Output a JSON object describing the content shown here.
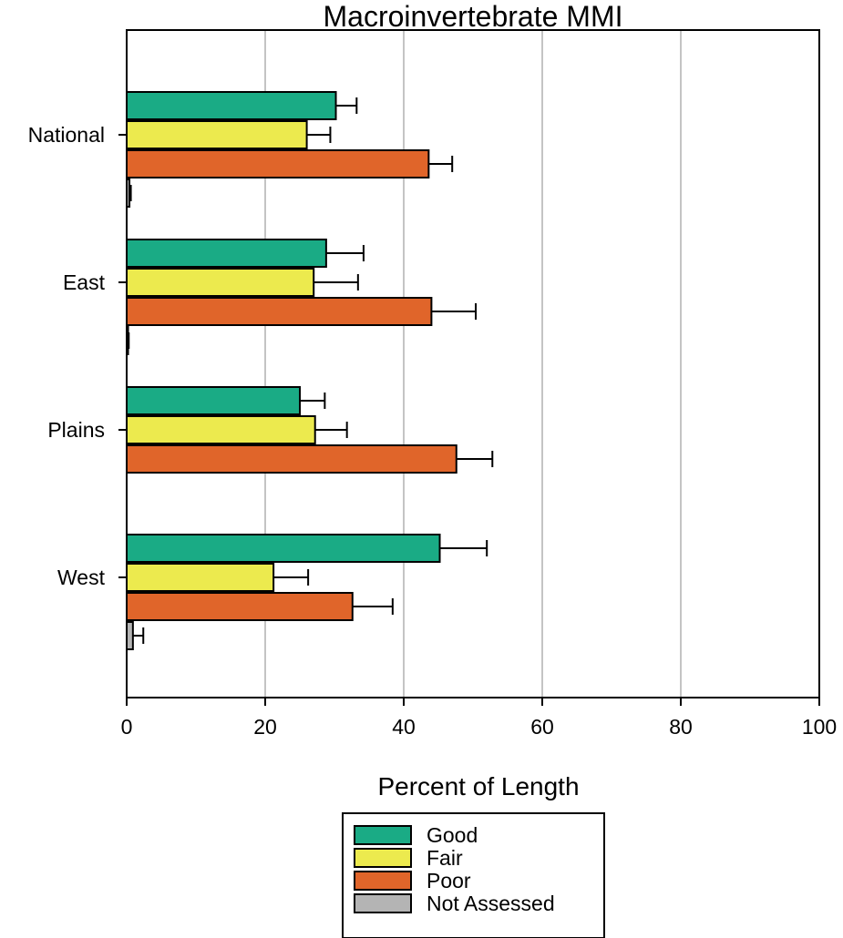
{
  "chart_data": {
    "type": "bar",
    "orientation": "horizontal",
    "title": "Macroinvertebrate MMI",
    "xlabel": "Percent of Length",
    "ylabel": "",
    "xlim": [
      0,
      100
    ],
    "xticks": [
      0,
      20,
      40,
      60,
      80,
      100
    ],
    "grid": true,
    "legend_position": "bottom-center",
    "categories": [
      "National",
      "East",
      "Plains",
      "West"
    ],
    "series": [
      {
        "name": "Good",
        "color": "#1aab85",
        "values": [
          30.2,
          28.8,
          25.0,
          45.2
        ],
        "error_upper": [
          33.2,
          34.2,
          28.6,
          52.0
        ]
      },
      {
        "name": "Fair",
        "color": "#ecea4e",
        "values": [
          26.0,
          27.0,
          27.2,
          21.2
        ],
        "error_upper": [
          29.4,
          33.4,
          31.8,
          26.2
        ]
      },
      {
        "name": "Poor",
        "color": "#e0652a",
        "values": [
          43.6,
          44.0,
          47.6,
          32.6
        ],
        "error_upper": [
          47.0,
          50.4,
          52.8,
          38.4
        ]
      },
      {
        "name": "Not Assessed",
        "color": "#b4b4b4",
        "values": [
          0.4,
          0.2,
          0.0,
          0.9
        ],
        "error_upper": [
          0.6,
          0.3,
          0.0,
          2.4
        ]
      }
    ]
  }
}
